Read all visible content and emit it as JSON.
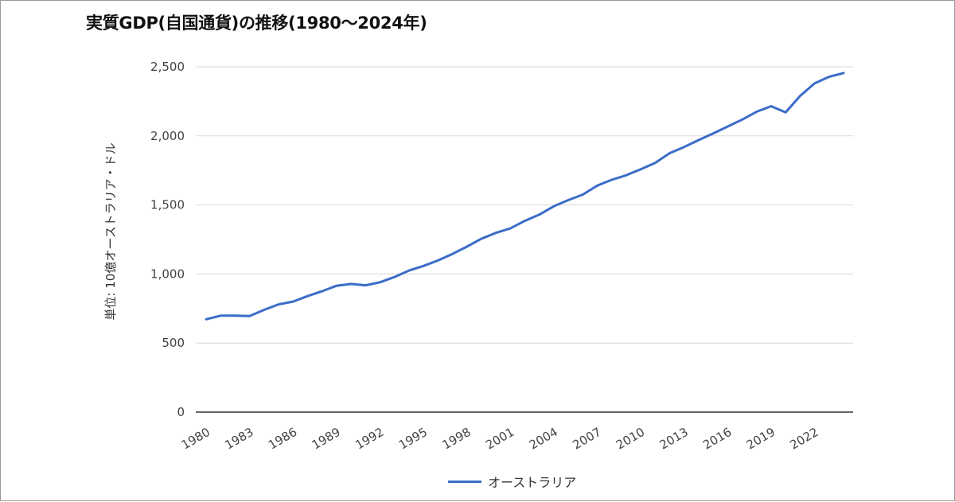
{
  "chart_data": {
    "type": "line",
    "title": "実質GDP(自国通貨)の推移(1980〜2024年)",
    "ylabel": "単位: 10億オーストラリア・ドル",
    "xlabel": "",
    "ylim": [
      0,
      2500
    ],
    "yticks": [
      "0",
      "500",
      "1,000",
      "1,500",
      "2,000",
      "2,500"
    ],
    "ytick_values": [
      0,
      500,
      1000,
      1500,
      2000,
      2500
    ],
    "xlim": [
      1980,
      2024
    ],
    "xticks": [
      "1980",
      "1983",
      "1986",
      "1989",
      "1992",
      "1995",
      "1998",
      "2001",
      "2004",
      "2007",
      "2010",
      "2013",
      "2016",
      "2019",
      "2022"
    ],
    "xtick_values": [
      1980,
      1983,
      1986,
      1989,
      1992,
      1995,
      1998,
      2001,
      2004,
      2007,
      2010,
      2013,
      2016,
      2019,
      2022
    ],
    "grid": true,
    "legend_position": "bottom",
    "x": [
      1980,
      1981,
      1982,
      1983,
      1984,
      1985,
      1986,
      1987,
      1988,
      1989,
      1990,
      1991,
      1992,
      1993,
      1994,
      1995,
      1996,
      1997,
      1998,
      1999,
      2000,
      2001,
      2002,
      2003,
      2004,
      2005,
      2006,
      2007,
      2008,
      2009,
      2010,
      2011,
      2012,
      2013,
      2014,
      2015,
      2016,
      2017,
      2018,
      2019,
      2020,
      2021,
      2022,
      2023,
      2024
    ],
    "series": [
      {
        "name": "オーストラリア",
        "color": "#3c6cc8",
        "values": [
          672,
          698,
          698,
          695,
          740,
          780,
          800,
          840,
          875,
          915,
          928,
          918,
          940,
          978,
          1025,
          1058,
          1098,
          1145,
          1198,
          1255,
          1298,
          1330,
          1385,
          1430,
          1490,
          1535,
          1575,
          1640,
          1682,
          1715,
          1758,
          1805,
          1875,
          1920,
          1970,
          2018,
          2068,
          2118,
          2175,
          2215,
          2170,
          2290,
          2380,
          2428,
          2455
        ]
      }
    ]
  }
}
